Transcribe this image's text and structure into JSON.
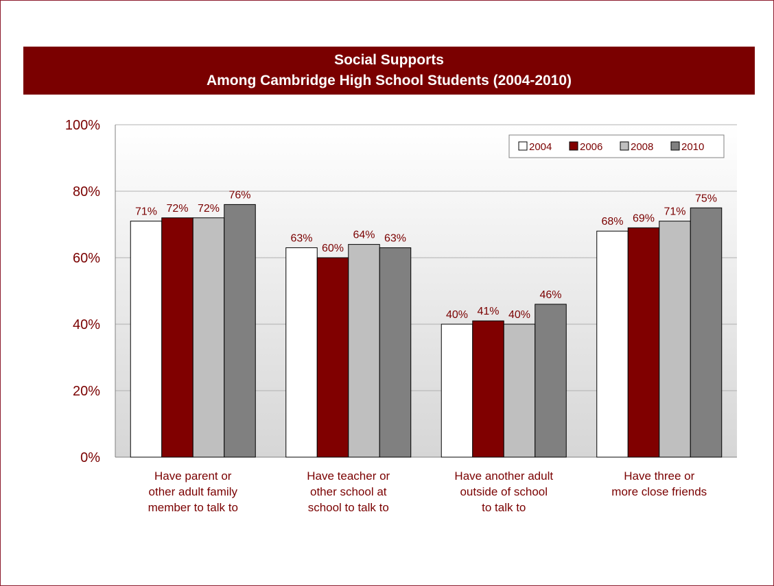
{
  "colors": {
    "brand": "#7a0000",
    "label": "#7a0000",
    "series": [
      "#ffffff",
      "#800000",
      "#bfbfbf",
      "#808080"
    ]
  },
  "chart_data": {
    "type": "bar",
    "title": "Social Supports",
    "subtitle": "Among Cambridge High School Students (2004-2010)",
    "categories": [
      [
        "Have parent or",
        "other adult family",
        "member to talk to"
      ],
      [
        "Have teacher or",
        "other school at",
        "school to talk to"
      ],
      [
        "Have another adult",
        "outside of school",
        "to talk to"
      ],
      [
        "Have three or",
        "more close friends"
      ]
    ],
    "series": [
      {
        "name": "2004",
        "values": [
          71,
          63,
          40,
          68
        ],
        "labels": [
          "71%",
          "63%",
          "40%",
          "68%"
        ]
      },
      {
        "name": "2006",
        "values": [
          72,
          60,
          41,
          69
        ],
        "labels": [
          "72%",
          "60%",
          "41%",
          "69%"
        ]
      },
      {
        "name": "2008",
        "values": [
          72,
          64,
          40,
          71
        ],
        "labels": [
          "72%",
          "64%",
          "40%",
          "71%"
        ]
      },
      {
        "name": "2010",
        "values": [
          76,
          63,
          46,
          75
        ],
        "labels": [
          "76%",
          "63%",
          "46%",
          "75%"
        ]
      }
    ],
    "yticks": [
      "0%",
      "20%",
      "40%",
      "60%",
      "80%",
      "100%"
    ],
    "ylim": [
      0,
      100
    ],
    "grid": true,
    "legend_position": "top-right"
  }
}
